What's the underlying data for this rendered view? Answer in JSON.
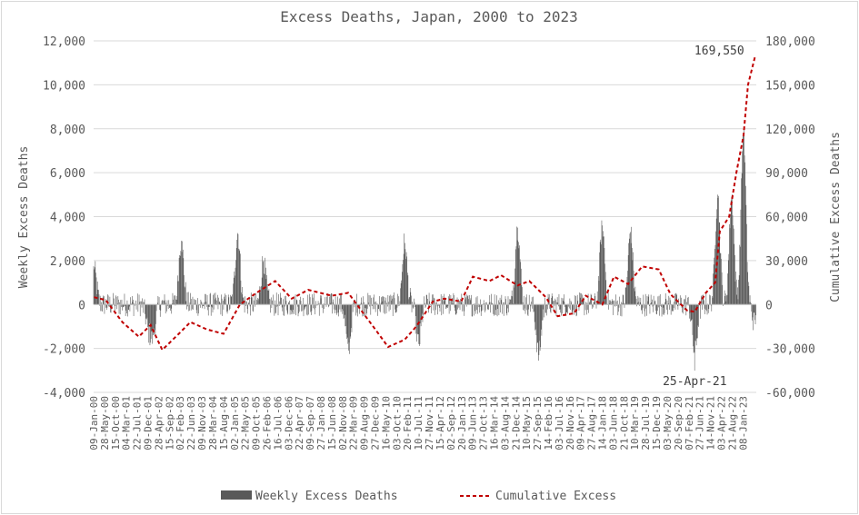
{
  "chart_data": {
    "type": "bar+line",
    "title": "Excess Deaths, Japan, 2000 to 2023",
    "ylabel_left": "Weekly Excess Deaths",
    "ylabel_right": "Cumulative Excess Deaths",
    "ylim_left": [
      -4000,
      12000
    ],
    "ylim_right": [
      -60000,
      180000
    ],
    "yticks_left": [
      "-4,000",
      "-2,000",
      "0",
      "2,000",
      "4,000",
      "6,000",
      "8,000",
      "10,000",
      "12,000"
    ],
    "yticks_right": [
      "-60,000",
      "-30,000",
      "0",
      "30,000",
      "60,000",
      "90,000",
      "120,000",
      "150,000",
      "180,000"
    ],
    "x_tick_labels": [
      "09-Jan-00",
      "28-May-00",
      "15-Oct-00",
      "04-Mar-01",
      "22-Jul-01",
      "09-Dec-01",
      "28-Apr-02",
      "15-Sep-02",
      "02-Feb-03",
      "22-Jun-03",
      "09-Nov-03",
      "28-Mar-04",
      "15-Aug-04",
      "02-Jan-05",
      "22-May-05",
      "09-Oct-05",
      "26-Feb-06",
      "16-Jul-06",
      "03-Dec-06",
      "22-Apr-07",
      "09-Sep-07",
      "27-Jan-08",
      "15-Jun-08",
      "02-Nov-08",
      "22-Mar-09",
      "09-Aug-09",
      "27-Dec-09",
      "16-May-10",
      "03-Oct-10",
      "20-Feb-11",
      "10-Jul-11",
      "27-Nov-11",
      "15-Apr-12",
      "02-Sep-12",
      "20-Jan-13",
      "09-Jun-13",
      "27-Oct-13",
      "16-Mar-14",
      "03-Aug-14",
      "21-Dec-14",
      "10-May-15",
      "27-Sep-15",
      "14-Feb-16",
      "03-Jul-16",
      "20-Nov-16",
      "09-Apr-17",
      "27-Aug-17",
      "14-Jan-18",
      "03-Jun-18",
      "21-Oct-18",
      "10-Mar-19",
      "28-Jul-19",
      "15-Dec-19",
      "03-May-20",
      "20-Sep-20",
      "07-Feb-21",
      "27-Jun-21",
      "14-Nov-21",
      "03-Apr-22",
      "21-Aug-22",
      "08-Jan-23"
    ],
    "series": [
      {
        "name": "Weekly Excess Deaths",
        "kind": "bar",
        "color": "#595959",
        "axis": "left",
        "peaks": [
          {
            "x": "2000-01",
            "y": 1600
          },
          {
            "x": "2001-12",
            "y": -1000
          },
          {
            "x": "2002-02",
            "y": -1400
          },
          {
            "x": "2003-02",
            "y": 2900
          },
          {
            "x": "2005-02",
            "y": 3250
          },
          {
            "x": "2006-01",
            "y": 2000
          },
          {
            "x": "2009-01",
            "y": -2100
          },
          {
            "x": "2011-01",
            "y": 2800
          },
          {
            "x": "2011-07",
            "y": -1800
          },
          {
            "x": "2015-01",
            "y": 3500
          },
          {
            "x": "2015-10",
            "y": -2300
          },
          {
            "x": "2018-01",
            "y": 3600
          },
          {
            "x": "2019-01",
            "y": 3300
          },
          {
            "x": "2021-04-25",
            "y": -2200
          },
          {
            "x": "2022-02",
            "y": 5000
          },
          {
            "x": "2022-08",
            "y": 4900
          },
          {
            "x": "2023-01",
            "y": 7800
          },
          {
            "x": "2023-06",
            "y": -900
          }
        ]
      },
      {
        "name": "Cumulative Excess",
        "kind": "line",
        "style": "dashed",
        "color": "#c00000",
        "axis": "right",
        "points": [
          {
            "x": "2000-01",
            "y": 5000
          },
          {
            "x": "2000-06",
            "y": 3000
          },
          {
            "x": "2001-01",
            "y": -12000
          },
          {
            "x": "2001-08",
            "y": -22000
          },
          {
            "x": "2002-01",
            "y": -14000
          },
          {
            "x": "2002-06",
            "y": -31000
          },
          {
            "x": "2003-01",
            "y": -20000
          },
          {
            "x": "2003-06",
            "y": -12000
          },
          {
            "x": "2004-01",
            "y": -17000
          },
          {
            "x": "2004-08",
            "y": -20000
          },
          {
            "x": "2005-03",
            "y": 0
          },
          {
            "x": "2005-10",
            "y": 8000
          },
          {
            "x": "2006-06",
            "y": 16000
          },
          {
            "x": "2007-01",
            "y": 4000
          },
          {
            "x": "2007-08",
            "y": 10000
          },
          {
            "x": "2008-06",
            "y": 6000
          },
          {
            "x": "2009-01",
            "y": 8000
          },
          {
            "x": "2009-07",
            "y": -5000
          },
          {
            "x": "2010-01",
            "y": -18000
          },
          {
            "x": "2010-06",
            "y": -29000
          },
          {
            "x": "2011-01",
            "y": -24000
          },
          {
            "x": "2011-06",
            "y": -15000
          },
          {
            "x": "2012-01",
            "y": 2000
          },
          {
            "x": "2012-06",
            "y": 4000
          },
          {
            "x": "2013-01",
            "y": 2000
          },
          {
            "x": "2013-06",
            "y": 19000
          },
          {
            "x": "2014-01",
            "y": 16000
          },
          {
            "x": "2014-06",
            "y": 20000
          },
          {
            "x": "2015-01",
            "y": 13000
          },
          {
            "x": "2015-06",
            "y": 16000
          },
          {
            "x": "2016-01",
            "y": 5000
          },
          {
            "x": "2016-06",
            "y": -8000
          },
          {
            "x": "2017-01",
            "y": -6000
          },
          {
            "x": "2017-06",
            "y": 6000
          },
          {
            "x": "2018-01",
            "y": 0
          },
          {
            "x": "2018-06",
            "y": 19000
          },
          {
            "x": "2018-12",
            "y": 14000
          },
          {
            "x": "2019-06",
            "y": 26000
          },
          {
            "x": "2020-01",
            "y": 24000
          },
          {
            "x": "2020-06",
            "y": 7000
          },
          {
            "x": "2021-01",
            "y": -4000
          },
          {
            "x": "2021-04-25",
            "y": -5000
          },
          {
            "x": "2021-09",
            "y": 8000
          },
          {
            "x": "2022-01",
            "y": 15000
          },
          {
            "x": "2022-03",
            "y": 50000
          },
          {
            "x": "2022-07",
            "y": 60000
          },
          {
            "x": "2022-10",
            "y": 90000
          },
          {
            "x": "2023-01",
            "y": 115000
          },
          {
            "x": "2023-03",
            "y": 150000
          },
          {
            "x": "2023-06",
            "y": 169550
          }
        ]
      }
    ],
    "annotations": [
      "169,550",
      "25-Apr-21"
    ],
    "legend": {
      "position": "bottom",
      "entries": [
        "Weekly Excess Deaths",
        "Cumulative Excess"
      ]
    },
    "grid": true
  }
}
